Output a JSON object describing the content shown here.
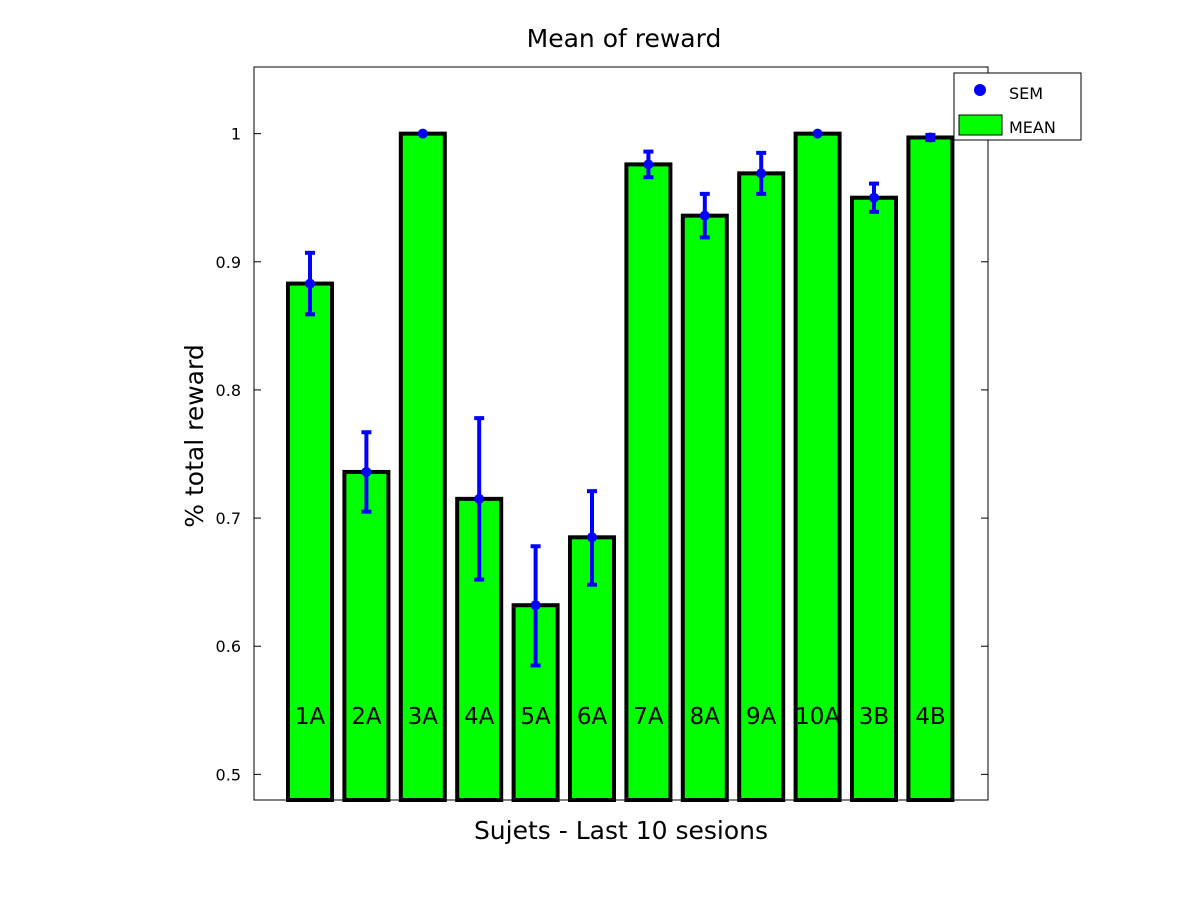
{
  "chart_data": {
    "type": "bar",
    "title": "Mean of reward",
    "xlabel": "Sujets - Last 10 sesions",
    "ylabel": "% total reward",
    "categories": [
      "1A",
      "2A",
      "3A",
      "4A",
      "5A",
      "6A",
      "7A",
      "8A",
      "9A",
      "10A",
      "3B",
      "4B"
    ],
    "series": [
      {
        "name": "MEAN",
        "values": [
          0.883,
          0.736,
          1.0,
          0.715,
          0.632,
          0.685,
          0.976,
          0.936,
          0.969,
          1.0,
          0.95,
          0.997
        ]
      }
    ],
    "error_bars": {
      "name": "SEM",
      "lower": [
        0.859,
        0.705,
        1.0,
        0.652,
        0.585,
        0.648,
        0.966,
        0.919,
        0.953,
        1.0,
        0.939,
        0.995
      ],
      "upper": [
        0.907,
        0.767,
        1.0,
        0.778,
        0.678,
        0.721,
        0.986,
        0.953,
        0.985,
        1.0,
        0.961,
        0.999
      ]
    },
    "ylim": [
      0.48,
      1.052
    ],
    "yticks": [
      0.5,
      0.6,
      0.7,
      0.8,
      0.9,
      1
    ],
    "ytick_labels": [
      "0.5",
      "0.6",
      "0.7",
      "0.8",
      "0.9",
      "1"
    ],
    "grid": false,
    "legend_position": "top-right",
    "colors": {
      "bar_fill": "#00ff00",
      "bar_edge": "#000000",
      "error_bar": "#0000ff"
    }
  }
}
